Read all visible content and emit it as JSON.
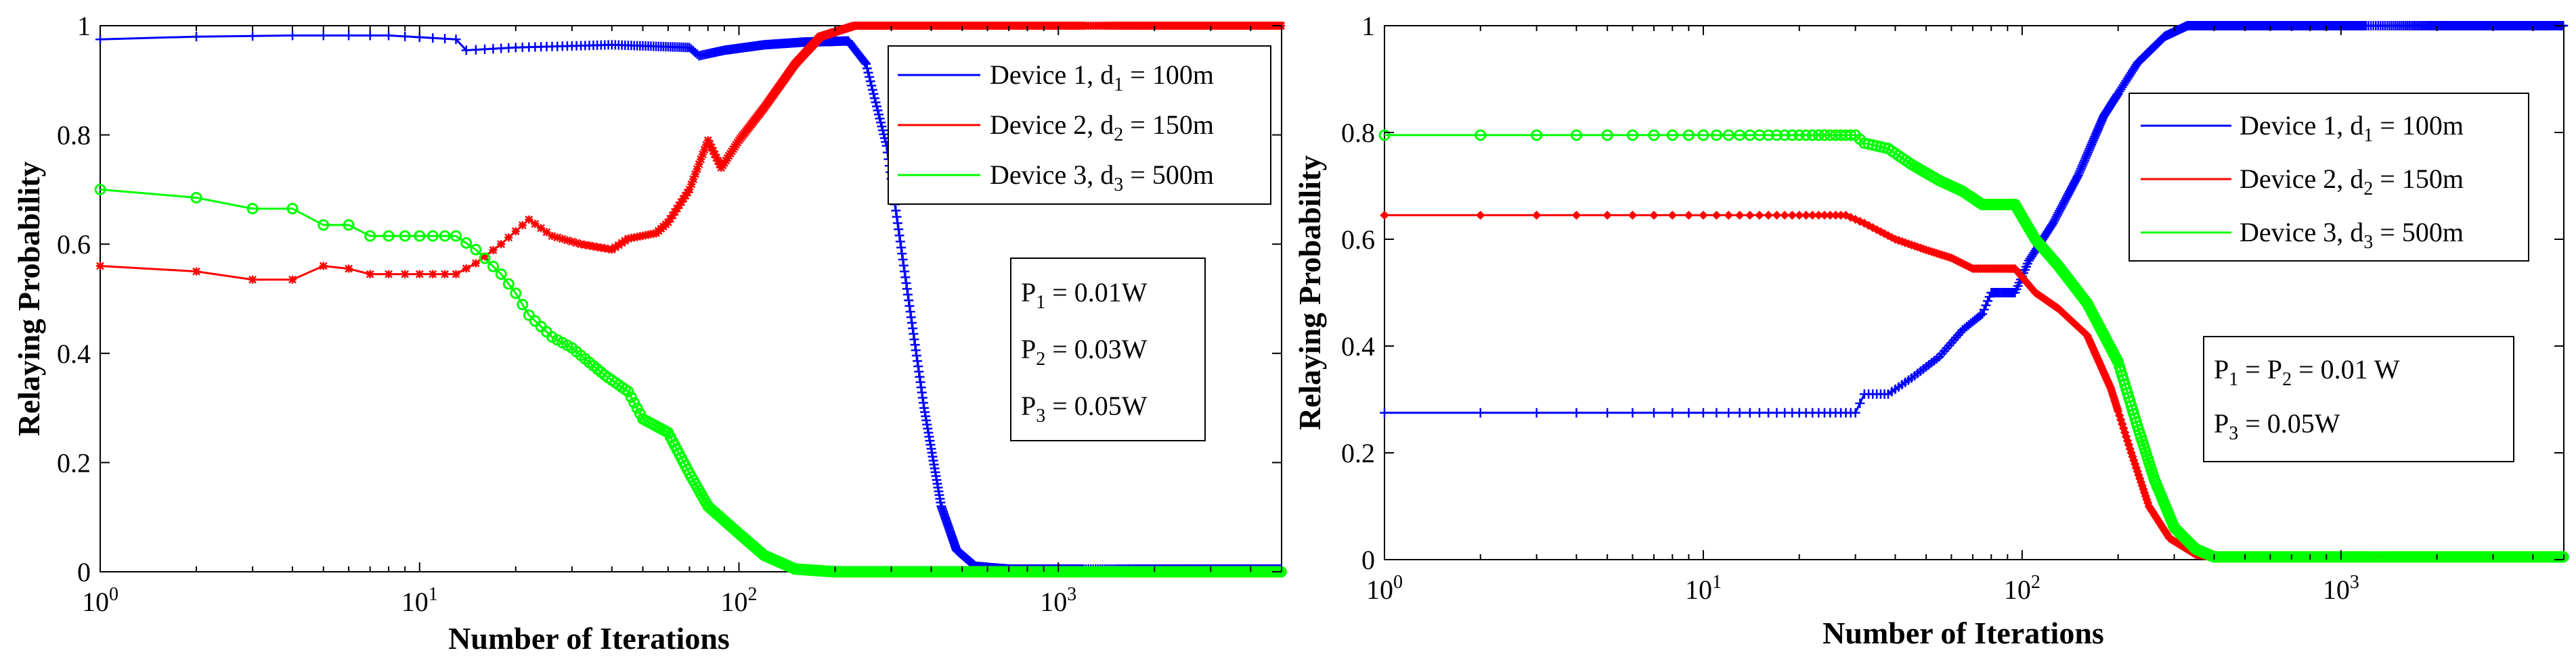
{
  "chart_data": [
    {
      "type": "line",
      "xscale": "log",
      "xlim": [
        1,
        5000
      ],
      "ylim": [
        0,
        1
      ],
      "xlabel": "Number of Iterations",
      "ylabel": "Relaying Probability",
      "x_ticks": [
        {
          "value": 1,
          "base": "10",
          "exp": "0"
        },
        {
          "value": 10,
          "base": "10",
          "exp": "1"
        },
        {
          "value": 100,
          "base": "10",
          "exp": "2"
        },
        {
          "value": 1000,
          "base": "10",
          "exp": "3"
        }
      ],
      "y_ticks": [
        {
          "value": 0,
          "label": "0"
        },
        {
          "value": 0.2,
          "label": "0.2"
        },
        {
          "value": 0.4,
          "label": "0.4"
        },
        {
          "value": 0.6,
          "label": "0.6"
        },
        {
          "value": 0.8,
          "label": "0.8"
        },
        {
          "value": 1,
          "label": "1"
        }
      ],
      "legend_position": "top-right",
      "series": [
        {
          "name": "Device 1",
          "legend": {
            "pre": "Device 1, d",
            "sub": "1",
            "post": " = 100m"
          },
          "color": "#0000ff",
          "marker": "plus",
          "points": [
            [
              1,
              0.975
            ],
            [
              2,
              0.98
            ],
            [
              4,
              0.982
            ],
            [
              8,
              0.982
            ],
            [
              13,
              0.975
            ],
            [
              14,
              0.955
            ],
            [
              20,
              0.96
            ],
            [
              40,
              0.965
            ],
            [
              70,
              0.96
            ],
            [
              75,
              0.945
            ],
            [
              90,
              0.955
            ],
            [
              120,
              0.965
            ],
            [
              160,
              0.97
            ],
            [
              220,
              0.972
            ],
            [
              250,
              0.93
            ],
            [
              290,
              0.78
            ],
            [
              330,
              0.55
            ],
            [
              380,
              0.3
            ],
            [
              430,
              0.12
            ],
            [
              480,
              0.04
            ],
            [
              550,
              0.01
            ],
            [
              700,
              0.005
            ],
            [
              1500,
              0.005
            ],
            [
              5000,
              0.005
            ]
          ]
        },
        {
          "name": "Device 2",
          "legend": {
            "pre": "Device 2, d",
            "sub": "2",
            "post": " = 150m"
          },
          "color": "#ff0000",
          "marker": "star",
          "points": [
            [
              1,
              0.56
            ],
            [
              2,
              0.55
            ],
            [
              3,
              0.535
            ],
            [
              4,
              0.535
            ],
            [
              5,
              0.56
            ],
            [
              6,
              0.555
            ],
            [
              7,
              0.545
            ],
            [
              9,
              0.545
            ],
            [
              13,
              0.545
            ],
            [
              15,
              0.565
            ],
            [
              18,
              0.6
            ],
            [
              22,
              0.645
            ],
            [
              26,
              0.615
            ],
            [
              32,
              0.6
            ],
            [
              40,
              0.59
            ],
            [
              45,
              0.61
            ],
            [
              55,
              0.62
            ],
            [
              60,
              0.64
            ],
            [
              70,
              0.7
            ],
            [
              80,
              0.79
            ],
            [
              88,
              0.74
            ],
            [
              100,
              0.79
            ],
            [
              120,
              0.85
            ],
            [
              150,
              0.93
            ],
            [
              180,
              0.98
            ],
            [
              230,
              1.0
            ],
            [
              500,
              1.0
            ],
            [
              5000,
              1.0
            ]
          ]
        },
        {
          "name": "Device 3",
          "legend": {
            "pre": "Device 3, d",
            "sub": "3",
            "post": " = 500m"
          },
          "color": "#00ff00",
          "marker": "circle",
          "points": [
            [
              1,
              0.7
            ],
            [
              2,
              0.685
            ],
            [
              3,
              0.665
            ],
            [
              4,
              0.665
            ],
            [
              5,
              0.635
            ],
            [
              6,
              0.635
            ],
            [
              7,
              0.615
            ],
            [
              10,
              0.615
            ],
            [
              13,
              0.615
            ],
            [
              15,
              0.59
            ],
            [
              18,
              0.545
            ],
            [
              20,
              0.51
            ],
            [
              22,
              0.47
            ],
            [
              26,
              0.43
            ],
            [
              30,
              0.41
            ],
            [
              38,
              0.36
            ],
            [
              45,
              0.33
            ],
            [
              50,
              0.28
            ],
            [
              60,
              0.255
            ],
            [
              70,
              0.18
            ],
            [
              80,
              0.12
            ],
            [
              100,
              0.07
            ],
            [
              120,
              0.03
            ],
            [
              150,
              0.005
            ],
            [
              200,
              0.0
            ],
            [
              5000,
              0.0
            ]
          ]
        }
      ],
      "annotation": [
        {
          "pre": "P",
          "sub": "1",
          "post": " = 0.01W"
        },
        {
          "pre": "P",
          "sub": "2",
          "post": " = 0.03W"
        },
        {
          "pre": "P",
          "sub": "3",
          "post": " = 0.05W"
        }
      ]
    },
    {
      "type": "line",
      "xscale": "log",
      "xlim": [
        1,
        5000
      ],
      "ylim": [
        0,
        1
      ],
      "xlabel": "Number of Iterations",
      "ylabel": "Relaying Probability",
      "x_ticks": [
        {
          "value": 1,
          "base": "10",
          "exp": "0"
        },
        {
          "value": 10,
          "base": "10",
          "exp": "1"
        },
        {
          "value": 100,
          "base": "10",
          "exp": "2"
        },
        {
          "value": 1000,
          "base": "10",
          "exp": "3"
        }
      ],
      "y_ticks": [
        {
          "value": 0,
          "label": "0"
        },
        {
          "value": 0.2,
          "label": "0.2"
        },
        {
          "value": 0.4,
          "label": "0.4"
        },
        {
          "value": 0.6,
          "label": "0.6"
        },
        {
          "value": 0.8,
          "label": "0.8"
        },
        {
          "value": 1,
          "label": "1"
        }
      ],
      "legend_position": "top-right",
      "series": [
        {
          "name": "Device 1",
          "legend": {
            "pre": "Device 1, d",
            "sub": "1",
            "post": " = 100m"
          },
          "color": "#0000ff",
          "marker": "plus",
          "points": [
            [
              1,
              0.275
            ],
            [
              10,
              0.275
            ],
            [
              30,
              0.275
            ],
            [
              32,
              0.31
            ],
            [
              38,
              0.31
            ],
            [
              45,
              0.34
            ],
            [
              55,
              0.38
            ],
            [
              65,
              0.43
            ],
            [
              75,
              0.46
            ],
            [
              80,
              0.5
            ],
            [
              95,
              0.5
            ],
            [
              105,
              0.56
            ],
            [
              125,
              0.63
            ],
            [
              150,
              0.72
            ],
            [
              180,
              0.83
            ],
            [
              230,
              0.93
            ],
            [
              280,
              0.98
            ],
            [
              330,
              1.0
            ],
            [
              5000,
              1.0
            ]
          ]
        },
        {
          "name": "Device 2",
          "legend": {
            "pre": "Device 2, d",
            "sub": "2",
            "post": " = 150m"
          },
          "color": "#ff0000",
          "marker": "diamond",
          "points": [
            [
              1,
              0.645
            ],
            [
              10,
              0.645
            ],
            [
              28,
              0.645
            ],
            [
              32,
              0.63
            ],
            [
              40,
              0.6
            ],
            [
              50,
              0.58
            ],
            [
              60,
              0.565
            ],
            [
              70,
              0.545
            ],
            [
              95,
              0.545
            ],
            [
              110,
              0.5
            ],
            [
              130,
              0.47
            ],
            [
              160,
              0.42
            ],
            [
              190,
              0.32
            ],
            [
              220,
              0.2
            ],
            [
              250,
              0.1
            ],
            [
              290,
              0.04
            ],
            [
              350,
              0.01
            ],
            [
              400,
              0.005
            ],
            [
              5000,
              0.005
            ]
          ]
        },
        {
          "name": "Device 3",
          "legend": {
            "pre": "Device 3, d",
            "sub": "3",
            "post": " = 500m"
          },
          "color": "#00ff00",
          "marker": "circle",
          "points": [
            [
              1,
              0.795
            ],
            [
              10,
              0.795
            ],
            [
              30,
              0.795
            ],
            [
              32,
              0.78
            ],
            [
              38,
              0.77
            ],
            [
              45,
              0.74
            ],
            [
              55,
              0.71
            ],
            [
              65,
              0.69
            ],
            [
              75,
              0.665
            ],
            [
              95,
              0.665
            ],
            [
              110,
              0.6
            ],
            [
              130,
              0.55
            ],
            [
              160,
              0.48
            ],
            [
              200,
              0.37
            ],
            [
              230,
              0.25
            ],
            [
              260,
              0.15
            ],
            [
              300,
              0.06
            ],
            [
              350,
              0.02
            ],
            [
              400,
              0.005
            ],
            [
              5000,
              0.005
            ]
          ]
        }
      ],
      "annotation": [
        {
          "pre": "P",
          "sub": "1",
          "mid": " = P",
          "sub2": "2",
          "post": " = 0.01 W"
        },
        {
          "pre": "P",
          "sub": "3",
          "post": " = 0.05W"
        }
      ]
    }
  ]
}
